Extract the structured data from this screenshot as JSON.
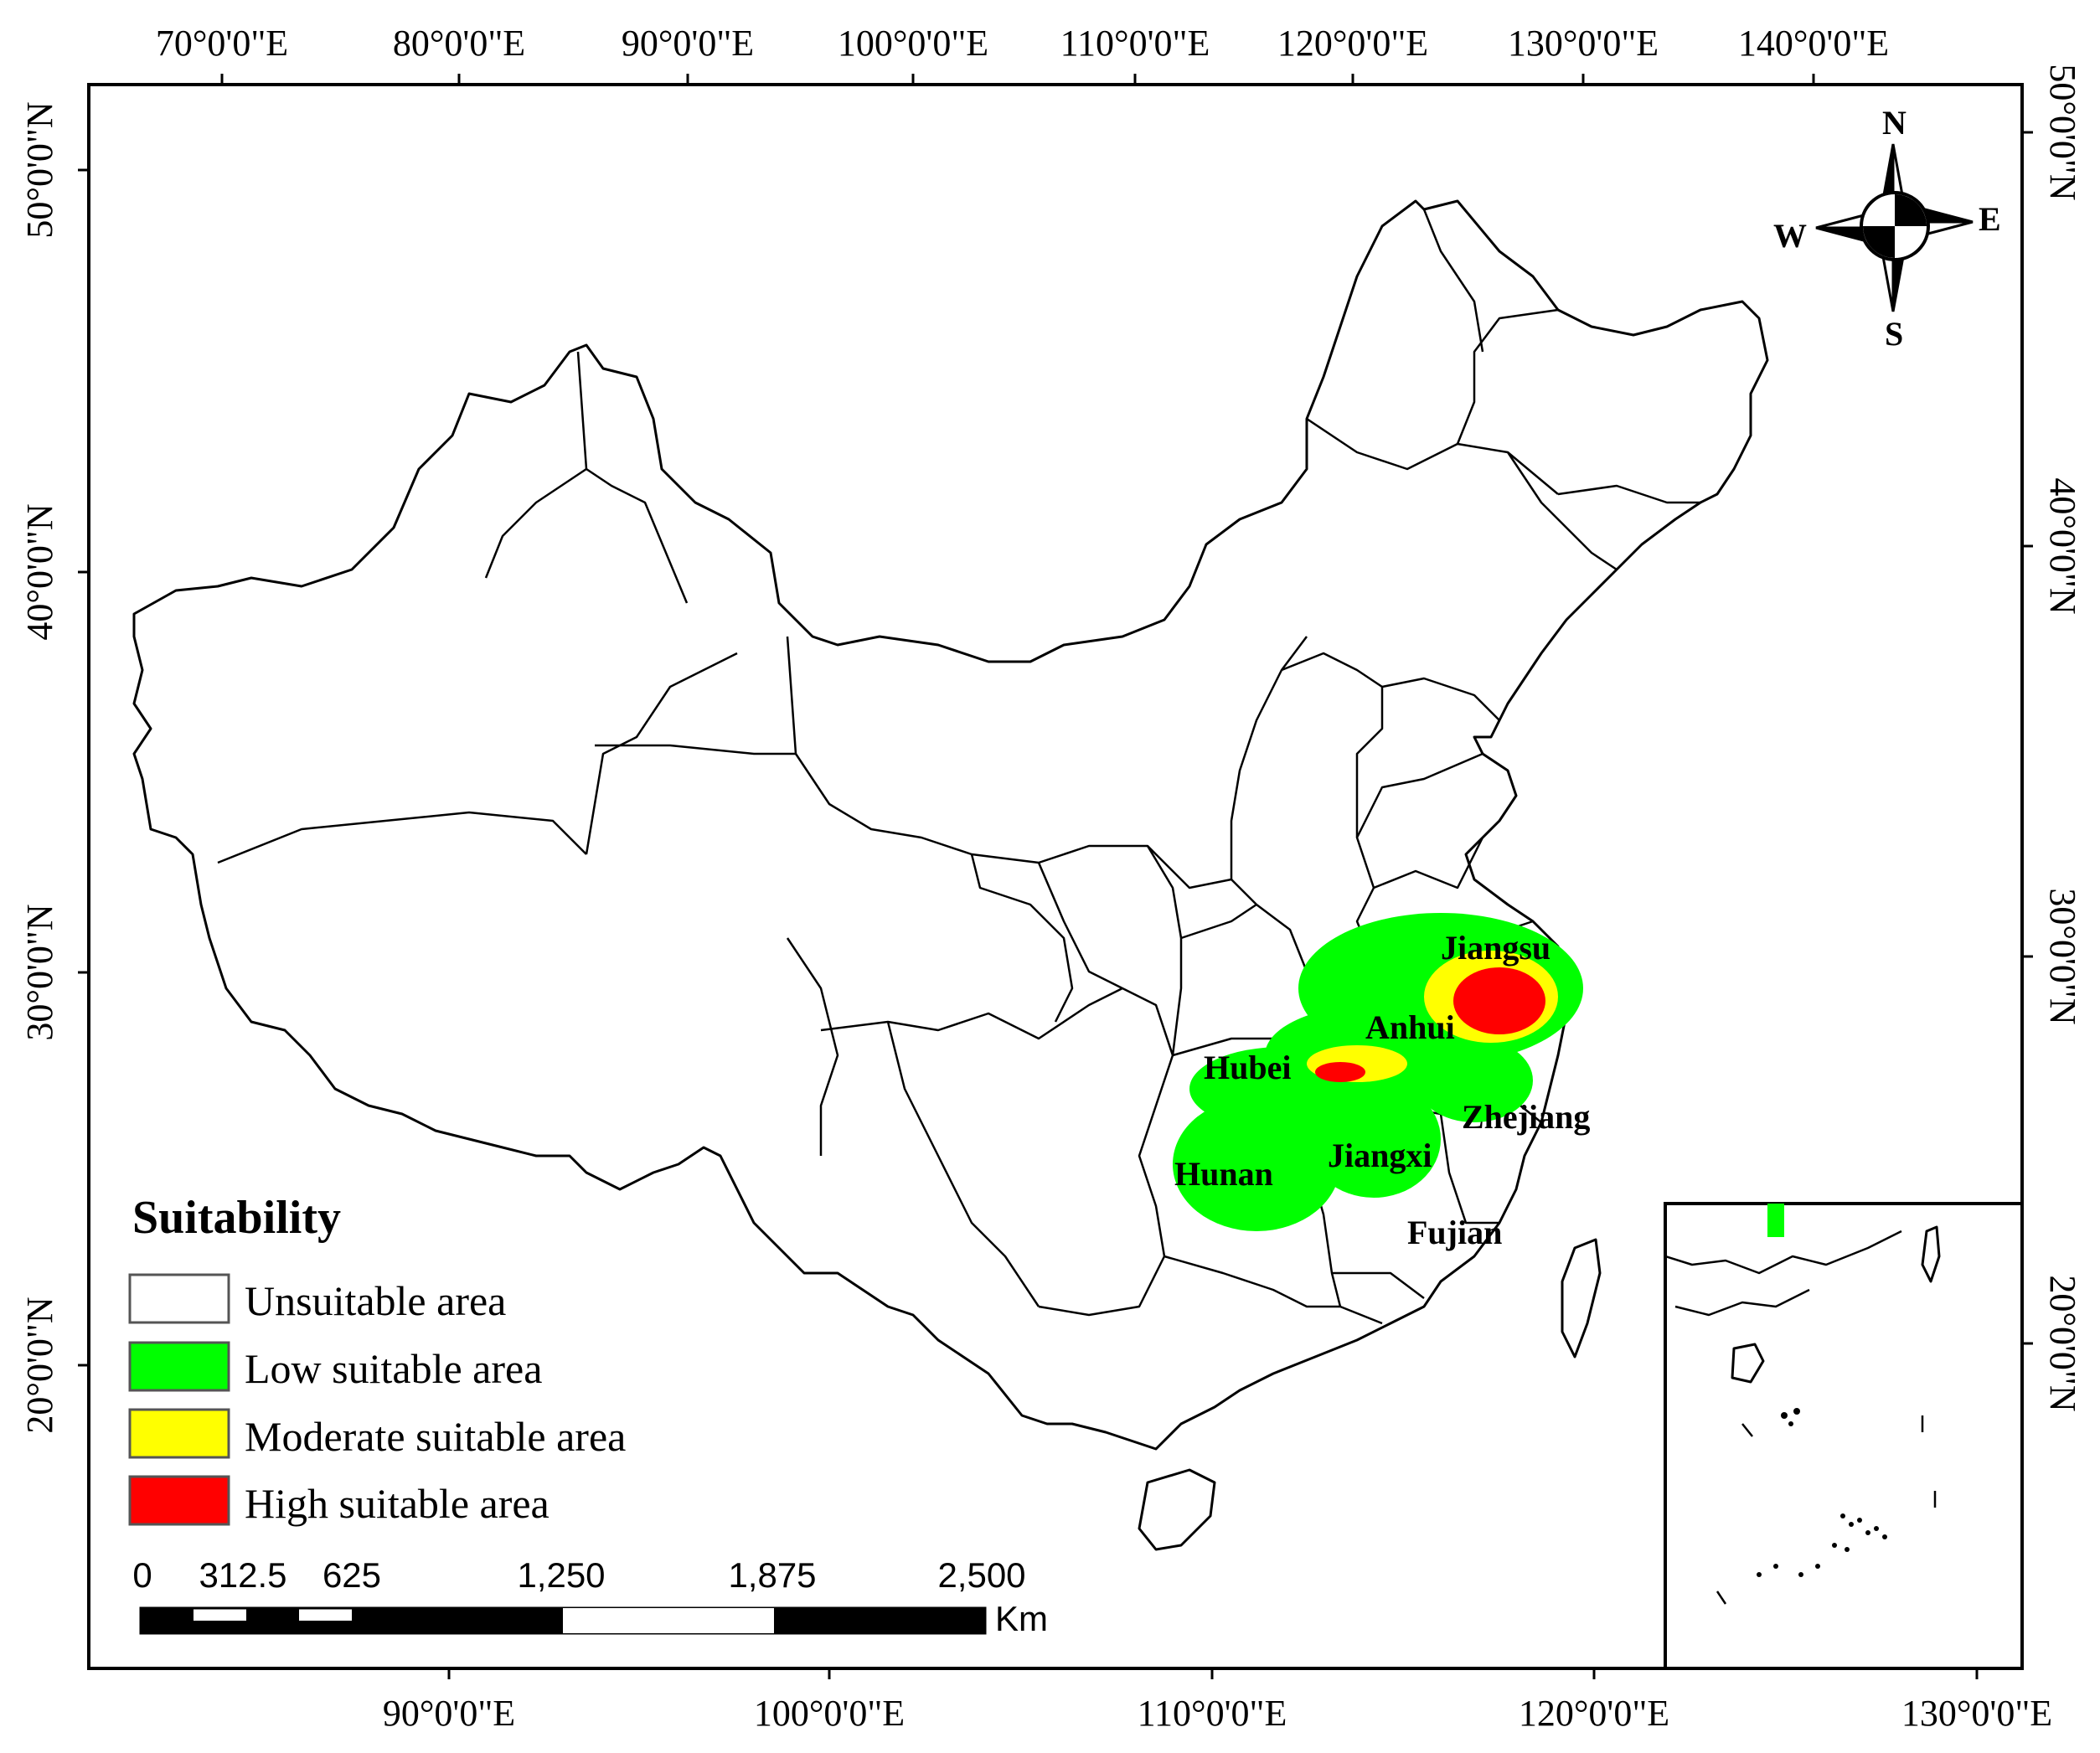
{
  "map": {
    "top_axis_labels": [
      "70°0'0\"E",
      "80°0'0\"E",
      "90°0'0\"E",
      "100°0'0\"E",
      "110°0'0\"E",
      "120°0'0\"E",
      "130°0'0\"E",
      "140°0'0\"E"
    ],
    "bottom_axis_labels": [
      "90°0'0\"E",
      "100°0'0\"E",
      "110°0'0\"E",
      "120°0'0\"E",
      "130°0'0\"E"
    ],
    "left_axis_labels": [
      "50°0'0\"N",
      "40°0'0\"N",
      "30°0'0\"N",
      "20°0'0\"N"
    ],
    "right_axis_labels": [
      "50°0'0\"N",
      "40°0'0\"N",
      "30°0'0\"N",
      "20°0'0\"N"
    ],
    "provinces": {
      "jiangsu": "Jiangsu",
      "anhui": "Anhui",
      "hubei": "Hubei",
      "zhejiang": "Zhejiang",
      "hunan": "Hunan",
      "jiangxi": "Jiangxi",
      "fujian": "Fujian"
    },
    "compass": {
      "n": "N",
      "e": "E",
      "s": "S",
      "w": "W"
    },
    "legend": {
      "title": "Suitability",
      "items": [
        {
          "label": "Unsuitable area",
          "color": "#ffffff"
        },
        {
          "label": "Low suitable area",
          "color": "#00ff00"
        },
        {
          "label": "Moderate suitable area",
          "color": "#ffff00"
        },
        {
          "label": "High suitable area",
          "color": "#ff0000"
        }
      ]
    },
    "scale_bar": {
      "ticks": [
        "0",
        "312.5",
        "625",
        "1,250",
        "1,875",
        "2,500"
      ],
      "unit": "Km"
    }
  }
}
